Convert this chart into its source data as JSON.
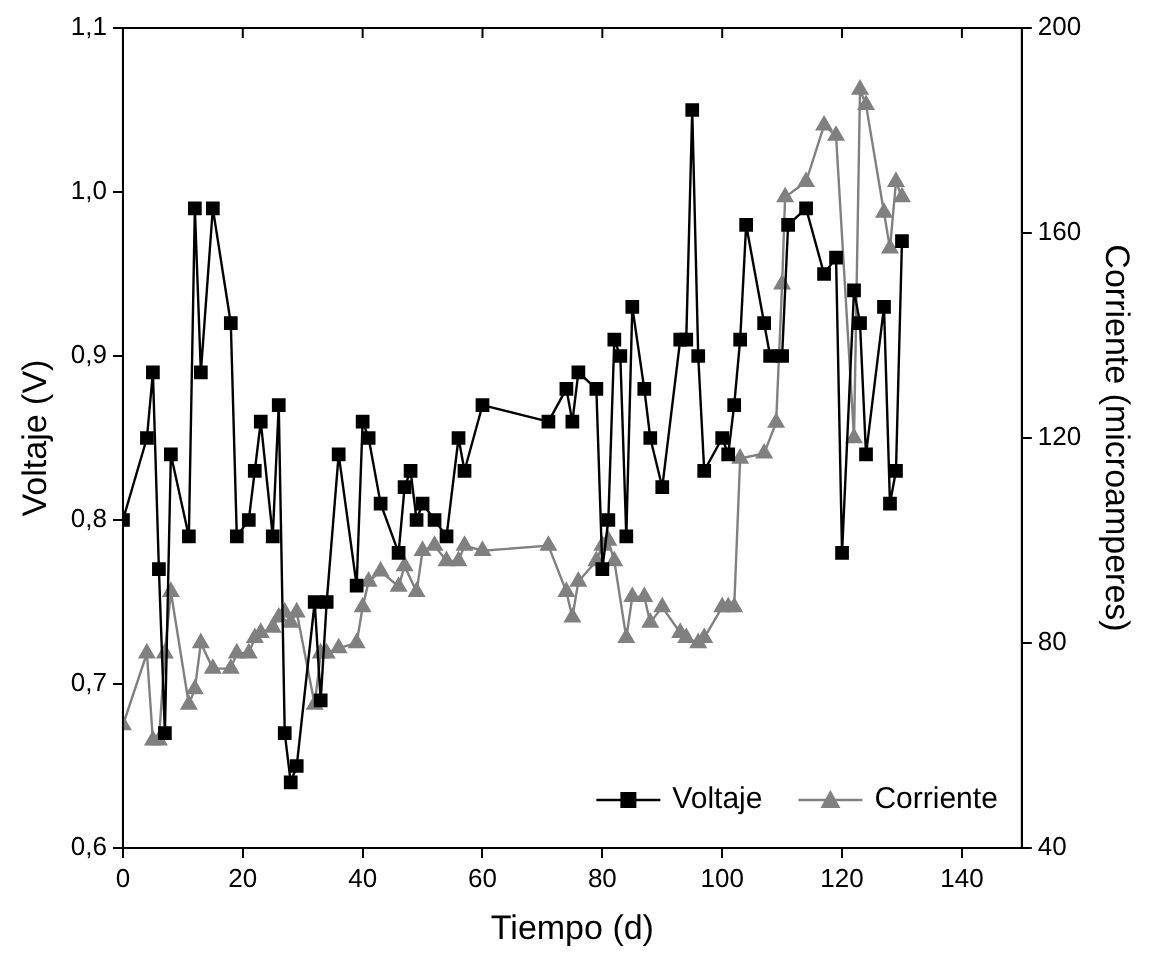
{
  "chart_data": {
    "type": "line",
    "xlabel": "Tiempo (d)",
    "ylabel": "Voltaje (V)",
    "y2label": "Corriente (microamperes)",
    "xlim": [
      0,
      150
    ],
    "xticks": [
      0,
      20,
      40,
      60,
      80,
      100,
      120,
      140
    ],
    "ylim": [
      0.6,
      1.1
    ],
    "yticks": [
      {
        "value": 0.6,
        "label": "0,6"
      },
      {
        "value": 0.7,
        "label": "0,7"
      },
      {
        "value": 0.8,
        "label": "0,8"
      },
      {
        "value": 0.9,
        "label": "0,9"
      },
      {
        "value": 1.0,
        "label": "1,0"
      },
      {
        "value": 1.1,
        "label": "1,1"
      }
    ],
    "y2lim": [
      40,
      200
    ],
    "y2ticks": [
      40,
      80,
      120,
      160,
      200
    ],
    "legend": "bottom right",
    "series": [
      {
        "name": "Voltaje",
        "color": "#000000",
        "marker": "square",
        "x": [
          0,
          4,
          5,
          6,
          7,
          8,
          11,
          12,
          13,
          15,
          18,
          19,
          21,
          22,
          23,
          25,
          26,
          27,
          28,
          29,
          32,
          33,
          34,
          36,
          39,
          40,
          41,
          43,
          46,
          47,
          48,
          49,
          50,
          52,
          54,
          56,
          57,
          60,
          71,
          74,
          75,
          76,
          79,
          80,
          81,
          82,
          83,
          84,
          85,
          87,
          88,
          90,
          93,
          94,
          95,
          96,
          97,
          100,
          101,
          102,
          103,
          104,
          107,
          108,
          110,
          111,
          114,
          117,
          119,
          120,
          122,
          123,
          124,
          127,
          128,
          129,
          130
        ],
        "values": [
          0.8,
          0.85,
          0.89,
          0.77,
          0.67,
          0.84,
          0.79,
          0.99,
          0.89,
          0.99,
          0.92,
          0.79,
          0.8,
          0.83,
          0.86,
          0.79,
          0.87,
          0.67,
          0.64,
          0.65,
          0.75,
          0.69,
          0.75,
          0.84,
          0.76,
          0.86,
          0.85,
          0.81,
          0.78,
          0.82,
          0.83,
          0.8,
          0.81,
          0.8,
          0.79,
          0.85,
          0.83,
          0.87,
          0.86,
          0.88,
          0.86,
          0.89,
          0.88,
          0.77,
          0.8,
          0.91,
          0.9,
          0.79,
          0.93,
          0.88,
          0.85,
          0.82,
          0.91,
          0.91,
          1.05,
          0.9,
          0.83,
          0.85,
          0.84,
          0.87,
          0.91,
          0.98,
          0.92,
          0.9,
          0.9,
          0.98,
          0.99,
          0.95,
          0.96,
          0.78,
          0.94,
          0.92,
          0.84,
          0.93,
          0.81,
          0.83,
          0.97
        ]
      },
      {
        "name": "Corriente",
        "color": "#808080",
        "marker": "triangle",
        "axis": "y2",
        "x": [
          0,
          4,
          5,
          6,
          7,
          8,
          11,
          12,
          13,
          15,
          18,
          19,
          21,
          22,
          23,
          25,
          26,
          27,
          28,
          29,
          32,
          33,
          34,
          36,
          39,
          40,
          41,
          43,
          46,
          47,
          49,
          50,
          52,
          54,
          56,
          57,
          60,
          71,
          74,
          75,
          76,
          79,
          80,
          81,
          82,
          84,
          85,
          87,
          88,
          90,
          93,
          94,
          96,
          97,
          100,
          101,
          102,
          103,
          107,
          109,
          110,
          110.5,
          114,
          117,
          119,
          122,
          123,
          124,
          127,
          128,
          129,
          130
        ],
        "values": [
          64,
          78,
          61,
          61,
          78,
          90,
          68,
          71,
          80,
          75,
          75,
          78,
          78,
          81,
          82,
          83,
          85,
          86,
          84,
          86,
          68,
          78,
          78,
          79,
          80,
          87,
          92,
          94,
          91,
          95,
          90,
          98,
          99,
          96,
          96,
          99,
          98,
          99,
          90,
          85,
          92,
          96,
          99,
          100,
          96,
          81,
          89,
          89,
          84,
          87,
          82,
          81,
          80,
          81,
          87,
          87,
          87,
          116,
          117,
          123,
          150,
          167,
          170,
          181,
          179,
          120,
          188,
          185,
          164,
          157,
          170,
          167
        ]
      }
    ]
  }
}
